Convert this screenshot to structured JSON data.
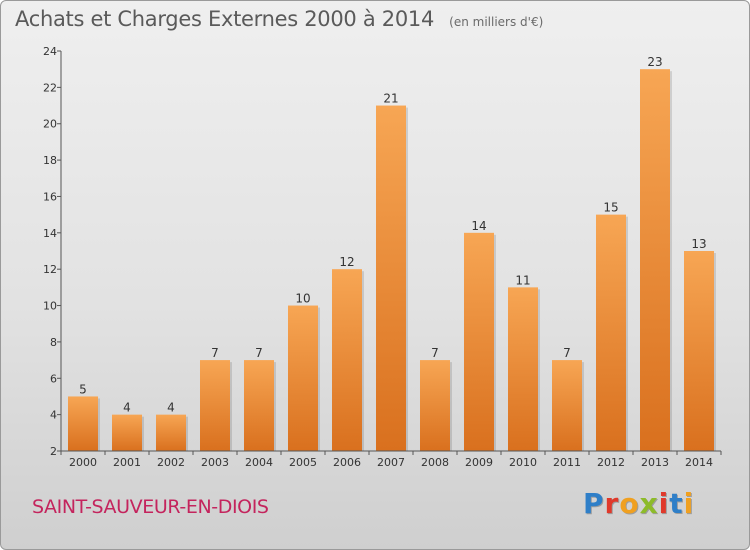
{
  "header": {
    "title": "Achats et Charges Externes 2000 à 2014",
    "subtitle": "(en milliers d'€)"
  },
  "footer": {
    "commune": "SAINT-SAUVEUR-EN-DIOIS",
    "logo_text": "Proxiti",
    "logo_colors": [
      "#2f7fc8",
      "#e0392b",
      "#f0a020",
      "#8dbb2a",
      "#e0392b",
      "#2f7fc8",
      "#f0a020"
    ]
  },
  "colors": {
    "bar_top": "#f7a654",
    "bar_bottom": "#d9701e",
    "commune": "#c4245d"
  },
  "chart_data": {
    "type": "bar",
    "categories": [
      "2000",
      "2001",
      "2002",
      "2003",
      "2004",
      "2005",
      "2006",
      "2007",
      "2008",
      "2009",
      "2010",
      "2011",
      "2012",
      "2013",
      "2014"
    ],
    "values": [
      5,
      4,
      4,
      7,
      7,
      10,
      12,
      21,
      7,
      14,
      11,
      7,
      15,
      23,
      13
    ],
    "data_labels": [
      "5",
      "4",
      "4",
      "7",
      "7",
      "10",
      "12",
      "21",
      "7",
      "14",
      "11",
      "7",
      "15",
      "23",
      "13"
    ],
    "yticks": [
      "2",
      "4",
      "6",
      "8",
      "10",
      "12",
      "14",
      "16",
      "18",
      "20",
      "22",
      "24"
    ],
    "ylim": [
      2,
      24
    ],
    "grid": false
  }
}
